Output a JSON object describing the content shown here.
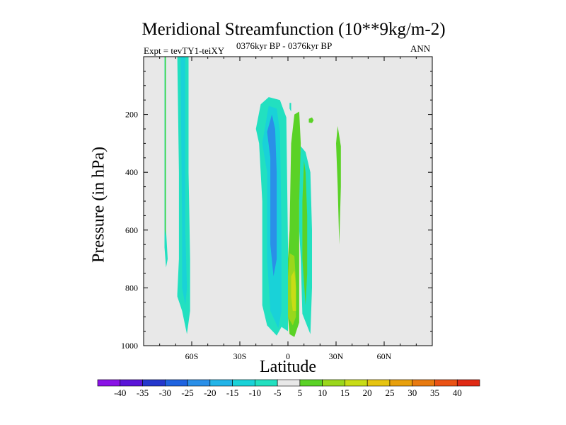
{
  "chart_data": {
    "type": "contour",
    "title": "Meridional Streamfunction (10**9kg/m-2)",
    "left_string": "Expt = tevTY1-teiXY",
    "center_string": "0376kyr BP - 0376kyr BP",
    "right_string": "ANN",
    "xlabel": "Latitude",
    "ylabel": "Pressure (in hPa)",
    "xlim": [
      -90,
      90
    ],
    "ylim": [
      1000,
      0
    ],
    "x_ticks": [
      {
        "value": -60,
        "label": "60S"
      },
      {
        "value": -30,
        "label": "30S"
      },
      {
        "value": 0,
        "label": "0"
      },
      {
        "value": 30,
        "label": "30N"
      },
      {
        "value": 60,
        "label": "60N"
      }
    ],
    "y_ticks": [
      {
        "value": 200,
        "label": "200"
      },
      {
        "value": 400,
        "label": "400"
      },
      {
        "value": 600,
        "label": "600"
      },
      {
        "value": 800,
        "label": "800"
      },
      {
        "value": 1000,
        "label": "1000"
      }
    ],
    "background_color": "#e8e8e8",
    "colorbar": {
      "labels": [
        "-40",
        "-35",
        "-30",
        "-25",
        "-20",
        "-15",
        "-10",
        "-5",
        "5",
        "10",
        "15",
        "20",
        "25",
        "30",
        "35",
        "40"
      ],
      "colors": [
        "#8a12e6",
        "#5a14d8",
        "#2437cc",
        "#1f63e0",
        "#2a8fe8",
        "#22b4e8",
        "#19d2d8",
        "#22e0c0",
        "#e8e8e8",
        "#5ad226",
        "#9ad71c",
        "#c8dc16",
        "#e6c410",
        "#e8a00c",
        "#e87a10",
        "#ea5214",
        "#e02a14"
      ]
    },
    "regions": [
      {
        "label": "-5",
        "color": "#22e0c0",
        "points": [
          [
            -77,
            0
          ],
          [
            -76,
            0
          ],
          [
            -76,
            600
          ],
          [
            -75,
            700
          ],
          [
            -76,
            730
          ],
          [
            -77,
            660
          ]
        ]
      },
      {
        "label": "5",
        "color": "#5ad226",
        "points": [
          [
            -76.8,
            0
          ],
          [
            -76.3,
            0
          ],
          [
            -76.3,
            620
          ],
          [
            -76.8,
            600
          ]
        ]
      },
      {
        "label": "-5",
        "color": "#22e0c0",
        "points": [
          [
            -69,
            0
          ],
          [
            -62,
            0
          ],
          [
            -62,
            400
          ],
          [
            -61,
            700
          ],
          [
            -61,
            880
          ],
          [
            -63,
            960
          ],
          [
            -66,
            880
          ],
          [
            -69,
            830
          ],
          [
            -69,
            820
          ],
          [
            -68,
            700
          ],
          [
            -68,
            400
          ]
        ]
      },
      {
        "label": "-10",
        "color": "#19d2d8",
        "points": [
          [
            -67,
            0
          ],
          [
            -64,
            0
          ],
          [
            -64,
            600
          ],
          [
            -63,
            800
          ],
          [
            -64,
            860
          ],
          [
            -66,
            800
          ],
          [
            -66,
            600
          ]
        ]
      },
      {
        "label": "-5",
        "color": "#22e0c0",
        "points": [
          [
            -20,
            250
          ],
          [
            -17,
            165
          ],
          [
            -12,
            140
          ],
          [
            -5,
            150
          ],
          [
            -1,
            210
          ],
          [
            0,
            650
          ],
          [
            0,
            950
          ],
          [
            -4,
            935
          ],
          [
            -7,
            965
          ],
          [
            -13,
            930
          ],
          [
            -16,
            860
          ],
          [
            -16,
            500
          ],
          [
            -18,
            300
          ]
        ]
      },
      {
        "label": "-10",
        "color": "#19d2d8",
        "points": [
          [
            -16,
            300
          ],
          [
            -12,
            170
          ],
          [
            -7,
            180
          ],
          [
            -5,
            260
          ],
          [
            -4,
            600
          ],
          [
            -4,
            880
          ],
          [
            -6,
            940
          ],
          [
            -11,
            880
          ],
          [
            -13,
            700
          ],
          [
            -13,
            400
          ]
        ]
      },
      {
        "label": "-15",
        "color": "#2a8fe8",
        "points": [
          [
            -13,
            260
          ],
          [
            -10,
            200
          ],
          [
            -8,
            250
          ],
          [
            -7,
            400
          ],
          [
            -7,
            700
          ],
          [
            -9,
            760
          ],
          [
            -11,
            650
          ],
          [
            -11,
            350
          ]
        ]
      },
      {
        "label": "-5",
        "color": "#22e0c0",
        "points": [
          [
            1,
            160
          ],
          [
            2,
            160
          ],
          [
            2,
            190
          ],
          [
            1,
            180
          ]
        ]
      },
      {
        "label": "-5",
        "color": "#22e0c0",
        "points": [
          [
            7,
            400
          ],
          [
            8,
            310
          ],
          [
            11,
            330
          ],
          [
            14,
            400
          ],
          [
            15,
            600
          ],
          [
            15,
            800
          ],
          [
            14,
            960
          ],
          [
            9,
            890
          ],
          [
            8,
            700
          ],
          [
            7,
            600
          ]
        ]
      },
      {
        "label": "5",
        "color": "#5ad226",
        "points": [
          [
            9,
            500
          ],
          [
            10,
            360
          ],
          [
            11,
            400
          ],
          [
            12,
            550
          ],
          [
            12,
            750
          ],
          [
            11,
            860
          ],
          [
            9,
            700
          ]
        ]
      },
      {
        "label": "5",
        "color": "#5ad226",
        "points": [
          [
            1,
            600
          ],
          [
            2,
            300
          ],
          [
            4,
            200
          ],
          [
            7,
            190
          ],
          [
            8,
            300
          ],
          [
            7,
            500
          ],
          [
            7,
            700
          ],
          [
            7,
            920
          ],
          [
            4,
            970
          ],
          [
            1,
            960
          ],
          [
            0,
            900
          ],
          [
            0,
            700
          ]
        ]
      },
      {
        "label": "10",
        "color": "#9ad71c",
        "points": [
          [
            0,
            760
          ],
          [
            1,
            680
          ],
          [
            4,
            690
          ],
          [
            5,
            780
          ],
          [
            5,
            900
          ],
          [
            3,
            930
          ],
          [
            0,
            900
          ]
        ]
      },
      {
        "label": "15",
        "color": "#c8dc16",
        "points": [
          [
            2,
            760
          ],
          [
            4,
            740
          ],
          [
            5,
            800
          ],
          [
            5,
            880
          ],
          [
            3,
            880
          ],
          [
            2,
            830
          ]
        ]
      },
      {
        "label": "5",
        "color": "#5ad226",
        "points": [
          [
            13,
            215
          ],
          [
            15,
            210
          ],
          [
            16,
            220
          ],
          [
            15,
            230
          ],
          [
            13,
            228
          ]
        ]
      },
      {
        "label": "5",
        "color": "#5ad226",
        "points": [
          [
            31,
            240
          ],
          [
            33,
            310
          ],
          [
            33,
            450
          ],
          [
            32,
            650
          ],
          [
            31,
            450
          ],
          [
            30,
            300
          ]
        ]
      }
    ]
  }
}
